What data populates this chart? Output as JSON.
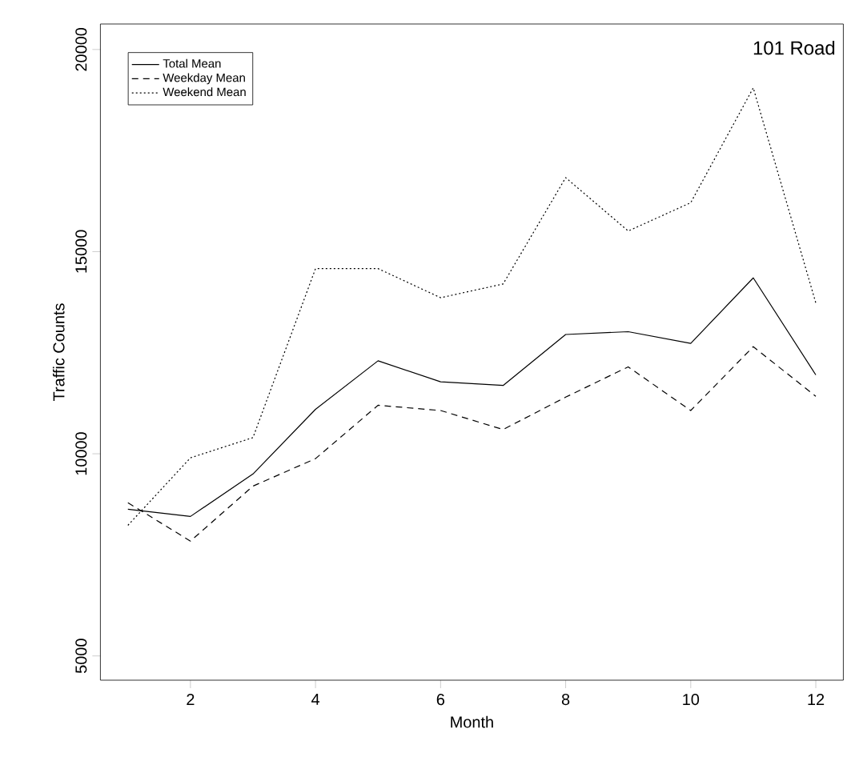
{
  "chart_data": {
    "type": "line",
    "xlabel": "Month",
    "ylabel": "Traffic Counts",
    "annotations": [
      "101 Road"
    ],
    "x": [
      1,
      2,
      3,
      4,
      5,
      6,
      7,
      8,
      9,
      10,
      11,
      12
    ],
    "xlim": [
      0.56,
      12.44
    ],
    "ylim": [
      4400,
      20630
    ],
    "xticks": [
      2,
      4,
      6,
      8,
      10,
      12
    ],
    "yticks": [
      5000,
      10000,
      15000,
      20000
    ],
    "grid": false,
    "legend": "top left",
    "marker": "none",
    "series": [
      {
        "name": "Total Mean",
        "color": "#000000",
        "line_style": "solid",
        "values": [
          8630,
          8450,
          9500,
          11100,
          12300,
          11780,
          11690,
          12950,
          13020,
          12730,
          14350,
          11950
        ]
      },
      {
        "name": "Weekday Mean",
        "color": "#000000",
        "line_style": "dashed",
        "values": [
          8790,
          7840,
          9200,
          9880,
          11200,
          11070,
          10600,
          11400,
          12150,
          11070,
          12650,
          11420
        ]
      },
      {
        "name": "Weekend Mean",
        "color": "#000000",
        "line_style": "dotted",
        "values": [
          8230,
          9900,
          10400,
          14580,
          14580,
          13860,
          14200,
          16830,
          15510,
          16210,
          19050,
          13730
        ]
      }
    ]
  }
}
